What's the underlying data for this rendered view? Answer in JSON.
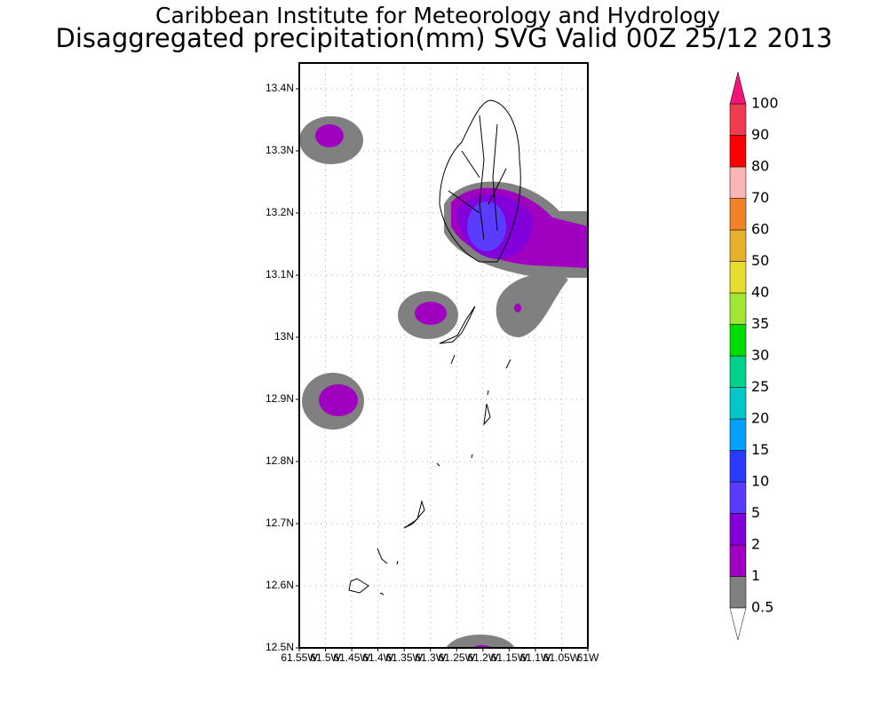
{
  "header": {
    "title": "Caribbean Institute for Meteorology and Hydrology",
    "subtitle": "Disaggregated precipitation(mm) SVG Valid 00Z 25/12 2013"
  },
  "map": {
    "lat_ticks": [
      {
        "value": 12.5,
        "label": "12.5N"
      },
      {
        "value": 12.6,
        "label": "12.6N"
      },
      {
        "value": 12.7,
        "label": "12.7N"
      },
      {
        "value": 12.8,
        "label": "12.8N"
      },
      {
        "value": 12.9,
        "label": "12.9N"
      },
      {
        "value": 13.0,
        "label": "13N"
      },
      {
        "value": 13.1,
        "label": "13.1N"
      },
      {
        "value": 13.2,
        "label": "13.2N"
      },
      {
        "value": 13.3,
        "label": "13.3N"
      },
      {
        "value": 13.4,
        "label": "13.4N"
      }
    ],
    "lon_ticks": [
      {
        "value": -61.55,
        "label": "61.55W"
      },
      {
        "value": -61.5,
        "label": "61.5W"
      },
      {
        "value": -61.45,
        "label": "61.45W"
      },
      {
        "value": -61.4,
        "label": "61.4W"
      },
      {
        "value": -61.35,
        "label": "61.35W"
      },
      {
        "value": -61.3,
        "label": "61.3W"
      },
      {
        "value": -61.25,
        "label": "61.25W"
      },
      {
        "value": -61.2,
        "label": "61.2W"
      },
      {
        "value": -61.15,
        "label": "61.15W"
      },
      {
        "value": -61.1,
        "label": "61.1W"
      },
      {
        "value": -61.05,
        "label": "61.05W"
      },
      {
        "value": -61.0,
        "label": "61W"
      }
    ],
    "grid": true
  },
  "colorbar": {
    "levels": [
      0.5,
      1,
      2,
      5,
      10,
      15,
      20,
      25,
      30,
      35,
      40,
      50,
      60,
      70,
      80,
      90,
      100
    ],
    "colors": [
      "#808080",
      "#a000c0",
      "#8200dc",
      "#5a3cff",
      "#283cff",
      "#00a0ff",
      "#00c8c8",
      "#00d28c",
      "#00dc00",
      "#a0e632",
      "#e6dc32",
      "#e6af2d",
      "#f08228",
      "#fab4b4",
      "#fa0000",
      "#f03c50"
    ],
    "under_color": "#ffffff",
    "over_color": "#f01478"
  }
}
